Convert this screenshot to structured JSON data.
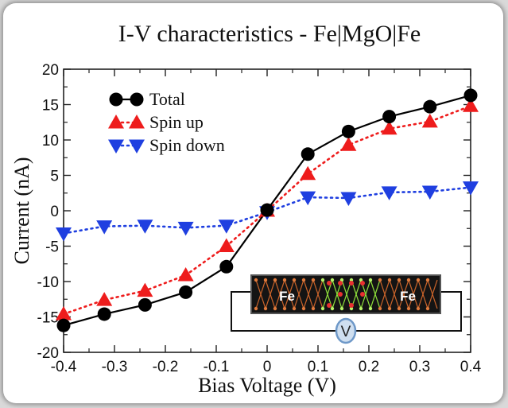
{
  "chart_data": {
    "type": "line",
    "title": "I-V characteristics - Fe|MgO|Fe",
    "xlabel": "Bias Voltage (V)",
    "ylabel": "Current (nA)",
    "xlim": [
      -0.4,
      0.4
    ],
    "ylim": [
      -20,
      20
    ],
    "xticks": [
      -0.4,
      -0.3,
      -0.2,
      -0.1,
      0,
      0.1,
      0.2,
      0.3,
      0.4
    ],
    "xtick_labels": [
      "-0.4",
      "-0.3",
      "-0.2",
      "-0.1",
      "0",
      "0.1",
      "0.2",
      "0.3",
      "0.4"
    ],
    "yticks": [
      -20,
      -15,
      -10,
      -5,
      0,
      5,
      10,
      15,
      20
    ],
    "ytick_labels": [
      "-20",
      "-15",
      "-10",
      "-5",
      "0",
      "5",
      "10",
      "15",
      "20"
    ],
    "grid": false,
    "legend_position": "top-left",
    "x": [
      -0.4,
      -0.32,
      -0.24,
      -0.16,
      -0.08,
      0,
      0.08,
      0.16,
      0.24,
      0.32,
      0.4
    ],
    "series": [
      {
        "name": "Total",
        "marker": "circle",
        "line": "solid",
        "color": "#000000",
        "values": [
          -16.2,
          -14.6,
          -13.3,
          -11.5,
          -7.9,
          0.1,
          8.0,
          11.2,
          13.3,
          14.7,
          16.3
        ]
      },
      {
        "name": "Spin up",
        "marker": "triangle-up",
        "line": "dotted",
        "color": "#ee1c1c",
        "values": [
          -14.6,
          -12.6,
          -11.3,
          -9.1,
          -5.0,
          0.0,
          5.2,
          9.3,
          11.6,
          12.6,
          14.8
        ]
      },
      {
        "name": "Spin down",
        "marker": "triangle-down",
        "line": "dotted",
        "color": "#1f3fe0",
        "values": [
          -3.2,
          -2.2,
          -2.1,
          -2.4,
          -2.1,
          -0.2,
          1.9,
          1.8,
          2.6,
          2.7,
          3.3
        ]
      }
    ],
    "inset": {
      "left_label": "Fe",
      "right_label": "Fe",
      "circuit_label": "V"
    }
  }
}
